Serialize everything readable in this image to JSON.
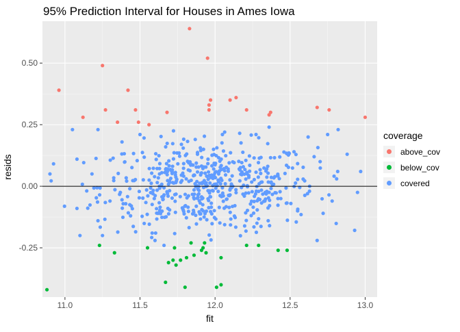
{
  "chart_data": {
    "type": "scatter",
    "title": "95% Prediction Interval for Houses in Ames Iowa",
    "xlabel": "fit",
    "ylabel": "resids",
    "xlim": [
      10.85,
      13.08
    ],
    "ylim": [
      -0.45,
      0.67
    ],
    "x_ticks": [
      11.0,
      11.5,
      12.0,
      12.5,
      13.0
    ],
    "x_tick_labels": [
      "11.0",
      "11.5",
      "12.0",
      "12.5",
      "13.0"
    ],
    "y_ticks": [
      -0.25,
      0.0,
      0.25,
      0.5
    ],
    "y_tick_labels": [
      "-0.25",
      "0.00",
      "0.25",
      "0.50"
    ],
    "hline": 0.0,
    "grid": true,
    "legend": {
      "title": "coverage",
      "position": "right"
    },
    "series": [
      {
        "name": "above_cov",
        "color": "#F8766D",
        "points": [
          [
            10.96,
            0.39
          ],
          [
            11.12,
            0.28
          ],
          [
            11.25,
            0.49
          ],
          [
            11.27,
            0.31
          ],
          [
            11.35,
            0.26
          ],
          [
            11.42,
            0.39
          ],
          [
            11.47,
            0.31
          ],
          [
            11.49,
            0.26
          ],
          [
            11.56,
            0.25
          ],
          [
            11.68,
            0.3
          ],
          [
            11.83,
            0.64
          ],
          [
            11.95,
            0.52
          ],
          [
            11.96,
            0.31
          ],
          [
            11.96,
            0.33
          ],
          [
            11.97,
            0.35
          ],
          [
            12.1,
            0.35
          ],
          [
            12.14,
            0.36
          ],
          [
            12.21,
            0.31
          ],
          [
            12.36,
            0.29
          ],
          [
            12.37,
            0.3
          ],
          [
            12.68,
            0.32
          ],
          [
            12.76,
            0.31
          ],
          [
            13.0,
            0.28
          ]
        ]
      },
      {
        "name": "below_cov",
        "color": "#00BA38",
        "points": [
          [
            10.88,
            -0.42
          ],
          [
            11.23,
            -0.24
          ],
          [
            11.33,
            -0.27
          ],
          [
            11.55,
            -0.25
          ],
          [
            11.67,
            -0.39
          ],
          [
            11.69,
            -0.31
          ],
          [
            11.72,
            -0.3
          ],
          [
            11.73,
            -0.25
          ],
          [
            11.74,
            -0.32
          ],
          [
            11.77,
            -0.3
          ],
          [
            11.8,
            -0.41
          ],
          [
            11.81,
            -0.29
          ],
          [
            11.84,
            -0.23
          ],
          [
            11.86,
            -0.28
          ],
          [
            11.91,
            -0.26
          ],
          [
            11.92,
            -0.25
          ],
          [
            11.93,
            -0.23
          ],
          [
            11.94,
            -0.27
          ],
          [
            12.01,
            -0.41
          ],
          [
            12.04,
            -0.4
          ],
          [
            12.04,
            -0.29
          ],
          [
            12.21,
            -0.24
          ],
          [
            12.29,
            -0.24
          ],
          [
            12.42,
            -0.26
          ],
          [
            12.48,
            -0.26
          ]
        ]
      },
      {
        "name": "covered",
        "color": "#619CFF",
        "points": []
      }
    ]
  }
}
